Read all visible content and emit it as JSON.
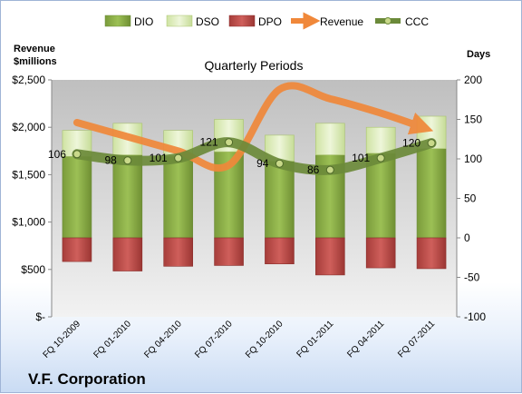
{
  "chart_data": {
    "type": "bar",
    "title": "Quarterly Periods",
    "company": "V.F. Corporation",
    "y_left_label": [
      "Revenue",
      "$millions"
    ],
    "y_right_label": "Days",
    "y_left_ticks": [
      "$2,500",
      "$2,000",
      "$1,500",
      "$1,000",
      "$500",
      "$-"
    ],
    "y_left_lim": [
      0,
      2500
    ],
    "y_right_ticks": [
      "200",
      "150",
      "100",
      "50",
      "0",
      "-50",
      "-100"
    ],
    "y_right_lim": [
      -100,
      200
    ],
    "categories": [
      "FQ 10-2009",
      "FQ 01-2010",
      "FQ 04-2010",
      "FQ 07-2010",
      "FQ 10-2010",
      "FQ 01-2011",
      "FQ 04-2011",
      "FQ 07-2011"
    ],
    "legend": [
      "DIO",
      "DSO",
      "DPO",
      "Revenue",
      "CCC"
    ],
    "series": [
      {
        "name": "DIO",
        "axis": "right",
        "kind": "bar",
        "color": "#8fb34a",
        "values": [
          103,
          105,
          103,
          109,
          97,
          105,
          107,
          113
        ]
      },
      {
        "name": "DSO",
        "axis": "right",
        "kind": "bar",
        "color": "#dcebb8",
        "values": [
          33,
          40,
          33,
          41,
          33,
          40,
          33,
          41
        ]
      },
      {
        "name": "DPO",
        "axis": "right",
        "kind": "bar",
        "color": "#c0504d",
        "values": [
          -30,
          -42,
          -36,
          -35,
          -33,
          -47,
          -38,
          -39
        ]
      },
      {
        "name": "Revenue",
        "axis": "left",
        "kind": "line",
        "color": "#f0883a",
        "values": [
          2050,
          1900,
          1750,
          1600,
          2400,
          2300,
          2150,
          2000
        ]
      },
      {
        "name": "CCC",
        "axis": "right",
        "kind": "line",
        "color": "#6b8a3a",
        "values": [
          106,
          98,
          101,
          121,
          94,
          86,
          101,
          120
        ],
        "labels": [
          "106",
          "98",
          "101",
          "121",
          "94",
          "86",
          "101",
          "120"
        ]
      }
    ],
    "grid": false,
    "legend_position": "top"
  }
}
